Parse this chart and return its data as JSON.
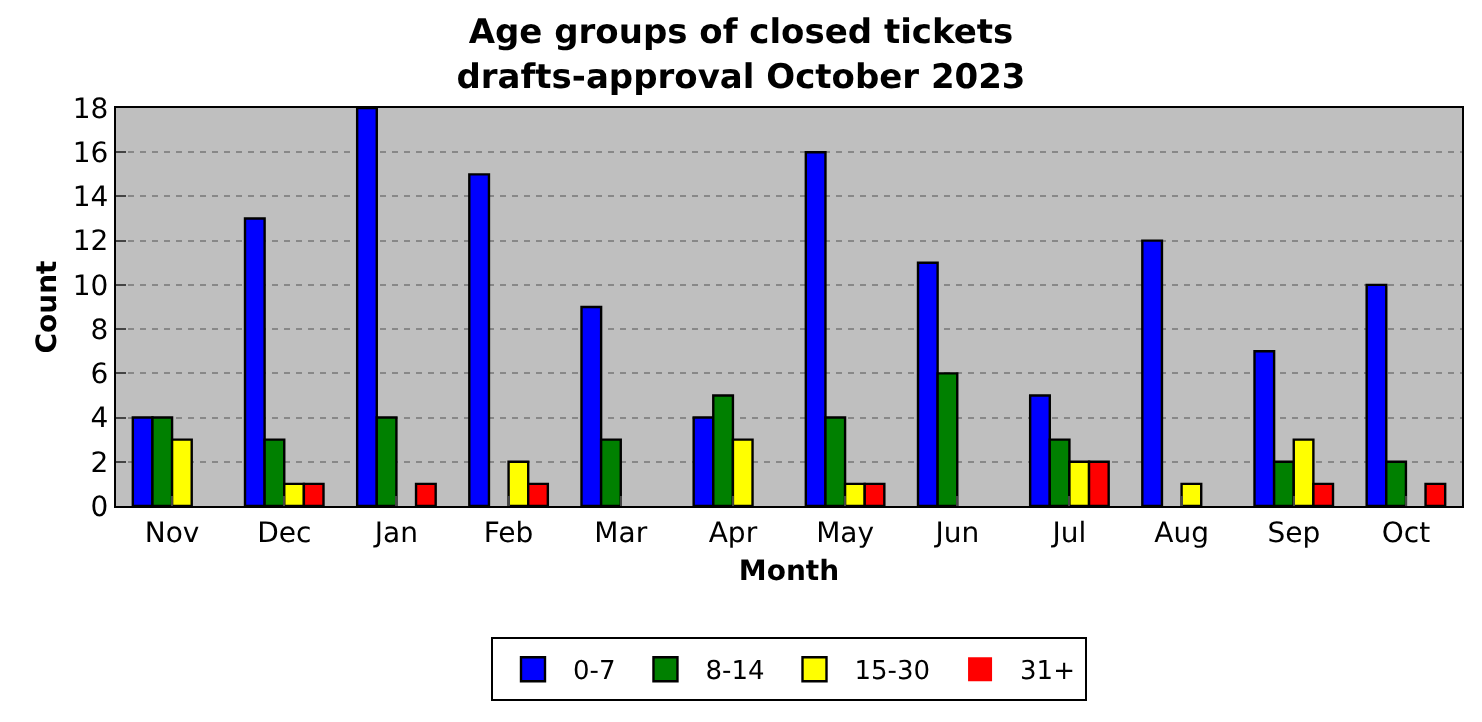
{
  "chart_data": {
    "type": "bar",
    "title": "Age groups of closed tickets\ndrafts-approval October 2023",
    "xlabel": "Month",
    "ylabel": "Count",
    "categories": [
      "Nov",
      "Dec",
      "Jan",
      "Feb",
      "Mar",
      "Apr",
      "May",
      "Jun",
      "Jul",
      "Aug",
      "Sep",
      "Oct"
    ],
    "series": [
      {
        "name": "0-7",
        "color": "#0000ff",
        "values": [
          4,
          13,
          18,
          15,
          9,
          4,
          16,
          11,
          5,
          12,
          7,
          10
        ]
      },
      {
        "name": "8-14",
        "color": "#008000",
        "values": [
          4,
          3,
          4,
          0,
          3,
          5,
          4,
          6,
          3,
          0,
          2,
          2
        ]
      },
      {
        "name": "15-30",
        "color": "#ffff00",
        "values": [
          3,
          1,
          0,
          2,
          0,
          3,
          1,
          0,
          2,
          1,
          3,
          0
        ]
      },
      {
        "name": "31+",
        "color": "#ff0000",
        "values": [
          0,
          1,
          1,
          1,
          0,
          0,
          1,
          0,
          2,
          0,
          1,
          1
        ]
      }
    ],
    "ylim": [
      0,
      18
    ],
    "yticks": [
      0,
      2,
      4,
      6,
      8,
      10,
      12,
      14,
      16,
      18
    ],
    "grid": "y",
    "legend": "bottom"
  }
}
